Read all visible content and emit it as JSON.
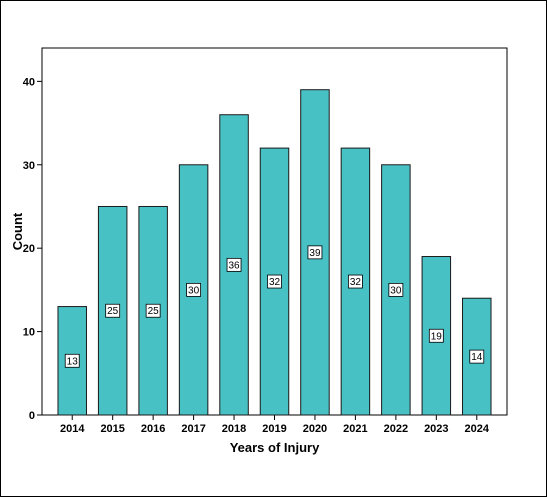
{
  "chart_data": {
    "type": "bar",
    "title": "",
    "xlabel": "Years of Injury",
    "ylabel": "Count",
    "categories": [
      "2014",
      "2015",
      "2016",
      "2017",
      "2018",
      "2019",
      "2020",
      "2021",
      "2022",
      "2023",
      "2024"
    ],
    "values": [
      13,
      25,
      25,
      30,
      36,
      32,
      39,
      32,
      30,
      19,
      14
    ],
    "data_labels": [
      "13",
      "25",
      "25",
      "30",
      "36",
      "32",
      "39",
      "32",
      "30",
      "19",
      "14"
    ],
    "ylim": [
      0,
      44
    ],
    "yticks": [
      "0",
      "10",
      "20",
      "30",
      "40"
    ],
    "grid": false,
    "legend": "none",
    "colors": {
      "bar": "#48C1C5",
      "stroke": "#1a1a1a",
      "background": "#ffffff"
    }
  }
}
